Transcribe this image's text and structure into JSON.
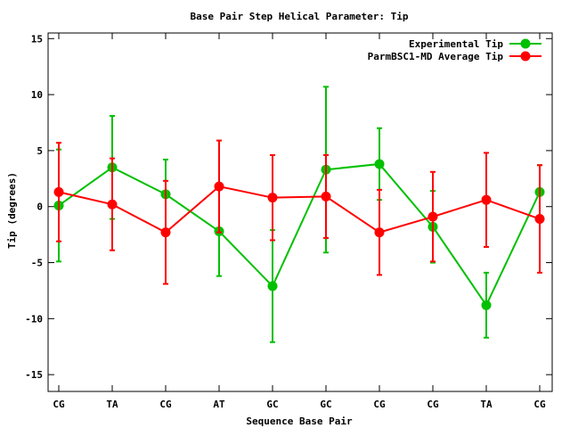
{
  "chart_data": {
    "type": "line",
    "title": "Base Pair Step Helical Parameter: Tip",
    "xlabel": "Sequence Base Pair",
    "ylabel": "Tip (degrees)",
    "categories": [
      "CG",
      "TA",
      "CG",
      "AT",
      "GC",
      "GC",
      "CG",
      "CG",
      "TA",
      "CG"
    ],
    "ylim": [
      -16.5,
      15.5
    ],
    "yticks": [
      -15,
      -10,
      -5,
      0,
      5,
      10,
      15
    ],
    "legend_position": "top-right",
    "grid": false,
    "series": [
      {
        "name": "Experimental Tip",
        "color": "#00c000",
        "values": [
          0.1,
          3.5,
          1.1,
          -2.2,
          -7.1,
          3.3,
          3.8,
          -1.8,
          -8.8,
          1.3
        ],
        "errors": [
          5.0,
          4.6,
          3.1,
          4.0,
          5.0,
          7.4,
          3.2,
          3.2,
          2.9,
          2.4
        ]
      },
      {
        "name": "ParmBSC1-MD Average Tip",
        "color": "#ff0000",
        "values": [
          1.3,
          0.2,
          -2.3,
          1.8,
          0.8,
          0.9,
          -2.3,
          -0.9,
          0.6,
          -1.1
        ],
        "errors": [
          4.4,
          4.1,
          4.6,
          4.1,
          3.8,
          3.7,
          3.8,
          4.0,
          4.2,
          4.8
        ]
      }
    ]
  }
}
